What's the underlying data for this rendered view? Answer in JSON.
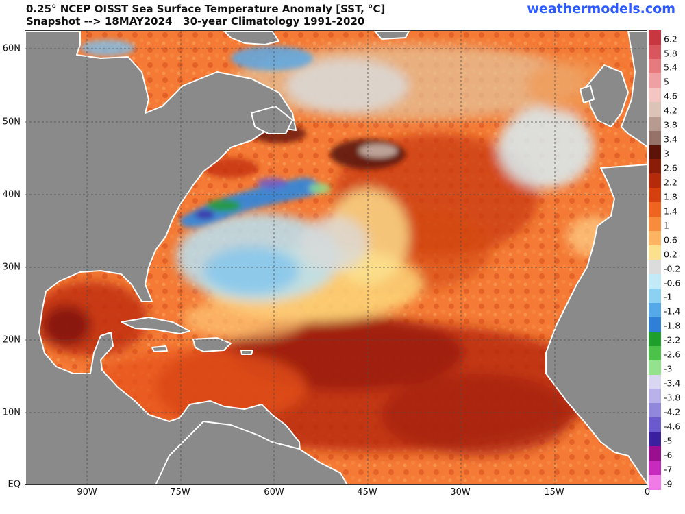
{
  "header": {
    "title_line1": "0.25° NCEP OISST Sea Surface Temperature Anomaly [SST, °C]",
    "title_line2": "Snapshot --> 18MAY2024   30-year Climatology 1991-2020",
    "brand": "weathermodels.com"
  },
  "map": {
    "region": "North Atlantic",
    "lon_range": [
      -100,
      0
    ],
    "lat_range": [
      0,
      62
    ],
    "grid": true,
    "latitude_labels": [
      "60N",
      "50N",
      "40N",
      "30N",
      "20N",
      "10N",
      "EQ"
    ],
    "longitude_labels": [
      "90W",
      "75W",
      "60W",
      "45W",
      "30W",
      "15W",
      "0"
    ],
    "colors": {
      "land": "#8a8a8a",
      "coastline": "#ffffff",
      "warm_strong": "#a01e0a",
      "warm_mid": "#f05a28",
      "warm_weak": "#fdb86b",
      "neutral": "#d9d9d9",
      "cool": "#9fd4f0",
      "cold": "#3a7fd6"
    }
  },
  "colorbar": {
    "labels": [
      "6.2",
      "5.8",
      "5.4",
      "5",
      "4.6",
      "4.2",
      "3.8",
      "3.4",
      "3",
      "2.6",
      "2.2",
      "1.8",
      "1.4",
      "1",
      "0.6",
      "0.2",
      "-0.2",
      "-0.6",
      "-1",
      "-1.4",
      "-1.8",
      "-2.2",
      "-2.6",
      "-3",
      "-3.4",
      "-3.8",
      "-4.2",
      "-4.6",
      "-5",
      "-6",
      "-7",
      "-9"
    ],
    "colors": [
      "#c8363f",
      "#d9565e",
      "#e57a7f",
      "#efa0a2",
      "#f5c5c3",
      "#dcc3b8",
      "#b89b90",
      "#967268",
      "#5c1408",
      "#8a1c08",
      "#b52a0a",
      "#d6400e",
      "#ee6420",
      "#f98c3c",
      "#fdb462",
      "#fde08e",
      "#dcdcdc",
      "#c2ebf7",
      "#8cd1f2",
      "#56a9e8",
      "#2f7ed8",
      "#1e9e2a",
      "#4cc24a",
      "#94e28e",
      "#d9d6f2",
      "#b9b2ea",
      "#9187dc",
      "#6a5acd",
      "#3a1f9e",
      "#9a0f8f",
      "#c72bbd",
      "#f07be6"
    ]
  }
}
